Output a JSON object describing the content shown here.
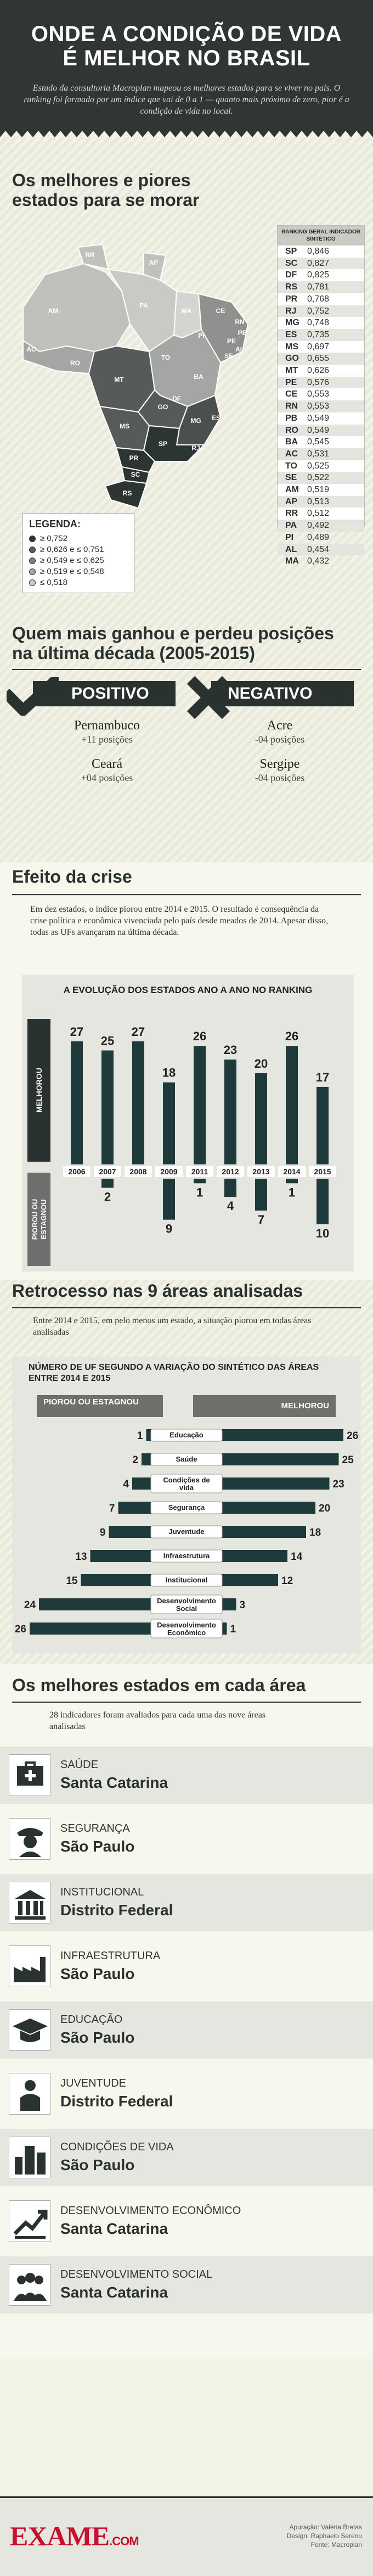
{
  "header": {
    "title_line1": "ONDE A CONDIÇÃO DE VIDA",
    "title_line2": "É MELHOR NO BRASIL",
    "subtitle": "Estudo da consultoria Macroplan mapeou os melhores estados para se viver no país. O ranking foi formado por um índice que vai de 0 a 1 — quanto mais próximo de zero, pior é a condição de vida no local."
  },
  "map_section": {
    "title": "Os melhores e piores estados para se morar",
    "state_labels": [
      "RR",
      "AP",
      "AM",
      "PA",
      "MA",
      "CE",
      "RN",
      "PB",
      "PE",
      "AL",
      "SE",
      "PI",
      "TO",
      "BA",
      "AC",
      "RO",
      "MT",
      "GO",
      "DF",
      "MG",
      "ES",
      "MS",
      "SP",
      "RJ",
      "PR",
      "SC",
      "RS"
    ],
    "legend": {
      "title": "LEGENDA:",
      "items": [
        {
          "label": "≥ 0,752",
          "color": "#2d3533"
        },
        {
          "label": "≥ 0,626 e ≤ 0,751",
          "color": "#565a58"
        },
        {
          "label": "≥ 0,549 e ≤ 0,625",
          "color": "#7c7f7c"
        },
        {
          "label": "≥ 0,519 e ≤ 0,548",
          "color": "#a3a6a2"
        },
        {
          "label": "≤ 0,518",
          "color": "#c8cac5"
        }
      ]
    },
    "ranking": {
      "header": "RANKING GERAL INDICADOR SINTÉTICO",
      "rows": [
        {
          "st": "SP",
          "v": "0,846"
        },
        {
          "st": "SC",
          "v": "0,827"
        },
        {
          "st": "DF",
          "v": "0,825"
        },
        {
          "st": "RS",
          "v": "0,781"
        },
        {
          "st": "PR",
          "v": "0,768"
        },
        {
          "st": "RJ",
          "v": "0,752"
        },
        {
          "st": "MG",
          "v": "0,748"
        },
        {
          "st": "ES",
          "v": "0,735"
        },
        {
          "st": "MS",
          "v": "0,697"
        },
        {
          "st": "GO",
          "v": "0,655"
        },
        {
          "st": "MT",
          "v": "0,626"
        },
        {
          "st": "PE",
          "v": "0,576"
        },
        {
          "st": "CE",
          "v": "0,553"
        },
        {
          "st": "RN",
          "v": "0,553"
        },
        {
          "st": "PB",
          "v": "0,549"
        },
        {
          "st": "RO",
          "v": "0,549"
        },
        {
          "st": "BA",
          "v": "0,545"
        },
        {
          "st": "AC",
          "v": "0,531"
        },
        {
          "st": "TO",
          "v": "0,525"
        },
        {
          "st": "SE",
          "v": "0,522"
        },
        {
          "st": "AM",
          "v": "0,519"
        },
        {
          "st": "AP",
          "v": "0,513"
        },
        {
          "st": "RR",
          "v": "0,512"
        },
        {
          "st": "PA",
          "v": "0,492"
        },
        {
          "st": "PI",
          "v": "0,489"
        },
        {
          "st": "AL",
          "v": "0,454"
        },
        {
          "st": "MA",
          "v": "0,432"
        }
      ]
    }
  },
  "positions": {
    "title": "Quem mais ganhou e perdeu posições na última década (2005-2015)",
    "positive": {
      "label": "POSITIVO",
      "items": [
        {
          "state": "Pernambuco",
          "change": "+11 posições"
        },
        {
          "state": "Ceará",
          "change": "+04 posições"
        }
      ]
    },
    "negative": {
      "label": "NEGATIVO",
      "items": [
        {
          "state": "Acre",
          "change": "-04 posições"
        },
        {
          "state": "Sergipe",
          "change": "-04 posições"
        }
      ]
    }
  },
  "crisis": {
    "title": "Efeito da crise",
    "text": "Em dez estados, o índice piorou entre 2014 e 2015. O resultado é consequência da crise política e econômica vivenciada pelo país desde meados de 2014. Apesar disso, todas as UFs avançaram na última década.",
    "chart_data": {
      "type": "bar",
      "title": "A EVOLUÇÃO DOS ESTADOS ANO A ANO NO RANKING",
      "categories": [
        "2006",
        "2007",
        "2008",
        "2009",
        "2011",
        "2012",
        "2013",
        "2014",
        "2015"
      ],
      "series": [
        {
          "name": "MELHOROU",
          "values": [
            27,
            25,
            27,
            18,
            26,
            23,
            20,
            26,
            17
          ]
        },
        {
          "name": "PIOROU OU ESTAGNOU",
          "values": [
            0,
            2,
            0,
            9,
            1,
            4,
            7,
            1,
            10
          ]
        }
      ]
    },
    "label_up": "MELHOROU",
    "label_down": "PIOROU OU ESTAGNOU"
  },
  "areas": {
    "title": "Retrocesso nas 9 áreas analisadas",
    "text": "Entre 2014 e 2015, em pelo menos um estado, a situação piorou em todas áreas analisadas",
    "chart_title": "NÚMERO DE UF SEGUNDO A VARIAÇÃO DO SINTÉTICO DAS ÁREAS ENTRE 2014 E 2015",
    "label_left": "PIOROU OU ESTAGNOU",
    "label_right": "MELHOROU",
    "chart_data": {
      "type": "bar",
      "categories": [
        "Educação",
        "Saúde",
        "Condições de vida",
        "Segurança",
        "Juventude",
        "Infraestrutura",
        "Institucional",
        "Desenvolvimento Social",
        "Desenvolvimento Econômico"
      ],
      "series": [
        {
          "name": "PIOROU OU ESTAGNOU",
          "values": [
            1,
            2,
            4,
            7,
            9,
            13,
            15,
            24,
            26
          ]
        },
        {
          "name": "MELHOROU",
          "values": [
            26,
            25,
            23,
            20,
            18,
            14,
            12,
            3,
            1
          ]
        }
      ]
    }
  },
  "best": {
    "title": "Os melhores estados em cada área",
    "text": "28 indicadores foram avaliados para cada uma das nove áreas analisadas",
    "rows": [
      {
        "area": "SAÚDE",
        "state": "Santa Catarina",
        "icon": "health-icon"
      },
      {
        "area": "SEGURANÇA",
        "state": "São Paulo",
        "icon": "police-icon"
      },
      {
        "area": "INSTITUCIONAL",
        "state": "Distrito Federal",
        "icon": "building-icon"
      },
      {
        "area": "INFRAESTRUTURA",
        "state": "São Paulo",
        "icon": "factory-icon"
      },
      {
        "area": "EDUCAÇÃO",
        "state": "São Paulo",
        "icon": "graduation-icon"
      },
      {
        "area": "JUVENTUDE",
        "state": "Distrito Federal",
        "icon": "youth-icon"
      },
      {
        "area": "CONDIÇÕES DE VIDA",
        "state": "São Paulo",
        "icon": "city-icon"
      },
      {
        "area": "DESENVOLVIMENTO ECONÔMICO",
        "state": "Santa Catarina",
        "icon": "growth-icon"
      },
      {
        "area": "DESENVOLVIMENTO SOCIAL",
        "state": "Santa Catarina",
        "icon": "people-icon"
      }
    ]
  },
  "footer": {
    "logo": "EXAME",
    "logo_suffix": ".COM",
    "credits": [
      "Apuração: Valéria Bretas",
      "Design: Raphaelo Sereno",
      "Fonte: Macroplan"
    ]
  }
}
